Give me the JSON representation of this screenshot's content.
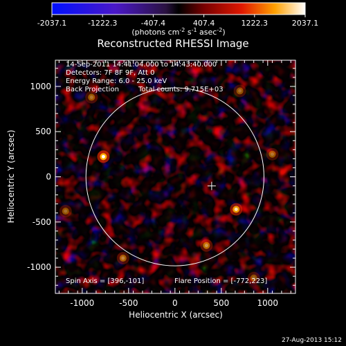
{
  "chart_data": {
    "type": "heatmap",
    "title": "Reconstructed RHESSI Image",
    "xlabel": "Heliocentric X (arcsec)",
    "ylabel": "Heliocentric Y (arcsec)",
    "xlim": [
      -1290,
      1300
    ],
    "ylim": [
      -1290,
      1290
    ],
    "x_ticks": [
      -1000,
      -500,
      0,
      500,
      1000
    ],
    "y_ticks": [
      -1000,
      -500,
      0,
      500,
      1000
    ],
    "colorbar": {
      "ticks": [
        "-2037.1",
        "-1222.3",
        "-407.4",
        "407.4",
        "1222.3",
        "2037.1"
      ],
      "range": [
        -2037.1,
        2037.1
      ],
      "units_prefix": "(photons cm",
      "units_exp1": "-2",
      "units_mid1": " s",
      "units_exp2": "-1",
      "units_mid2": " asec",
      "units_exp3": "-2",
      "units_suffix": ")"
    },
    "annotations": [
      "14-Sep-2011 14:41:04.000 to 14:43:40.000",
      "Detectors: 7F 8F 9F, Att 0",
      "Energy Range: 6.0 - 25.0 keV",
      "Back Projection",
      "Total counts: 9.715E+03"
    ],
    "footer_left": "Spin Axis = [396,-101]",
    "footer_right": "Flare Position = [-772,223]",
    "solar_disk": {
      "center": [
        0,
        0
      ],
      "radius_arcsec": 960
    },
    "spin_axis_marker": [
      396,
      -101
    ],
    "bright_sources": [
      {
        "x": -772,
        "y": 223,
        "value": 2037
      },
      {
        "x": 660,
        "y": -360,
        "value": 1700
      },
      {
        "x": 340,
        "y": -760,
        "value": 1150
      },
      {
        "x": -560,
        "y": -900,
        "value": 1000
      },
      {
        "x": -900,
        "y": 880,
        "value": 900
      },
      {
        "x": 700,
        "y": 950,
        "value": 850
      },
      {
        "x": 1050,
        "y": 250,
        "value": 900
      },
      {
        "x": -1180,
        "y": -380,
        "value": 850
      },
      {
        "x": 850,
        "y": -1120,
        "value": 800
      }
    ]
  },
  "timestamp": "27-Aug-2013 15:12",
  "colors": {
    "background": "#000000",
    "foreground": "#ffffff"
  }
}
